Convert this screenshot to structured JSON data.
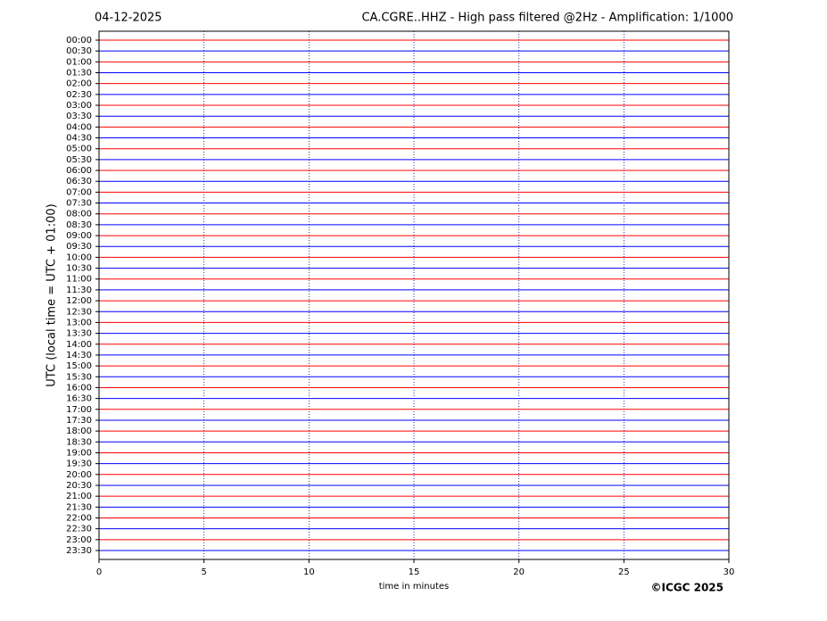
{
  "chart_data": {
    "type": "helicorder",
    "date": "04-12-2025",
    "title": "CA.CGRE..HHZ - High pass filtered @2Hz - Amplification: 1/1000",
    "ylabel": "UTC (local time = UTC + 01:00)",
    "xlabel": "time in minutes",
    "credit": "©ICGC 2025",
    "categories": [
      "00:00",
      "00:30",
      "01:00",
      "01:30",
      "02:00",
      "02:30",
      "03:00",
      "03:30",
      "04:00",
      "04:30",
      "05:00",
      "05:30",
      "06:00",
      "06:30",
      "07:00",
      "07:30",
      "08:00",
      "08:30",
      "09:00",
      "09:30",
      "10:00",
      "10:30",
      "11:00",
      "11:30",
      "12:00",
      "12:30",
      "13:00",
      "13:30",
      "14:00",
      "14:30",
      "15:00",
      "15:30",
      "16:00",
      "16:30",
      "17:00",
      "17:30",
      "18:00",
      "18:30",
      "19:00",
      "19:30",
      "20:00",
      "20:30",
      "21:00",
      "21:30",
      "22:00",
      "22:30",
      "23:00",
      "23:30"
    ],
    "trace_colors": [
      "#ff0000",
      "#0000ff"
    ],
    "xlim": [
      0,
      30
    ],
    "xticks": [
      0,
      5,
      10,
      15,
      20,
      25,
      30
    ],
    "grid": true
  }
}
